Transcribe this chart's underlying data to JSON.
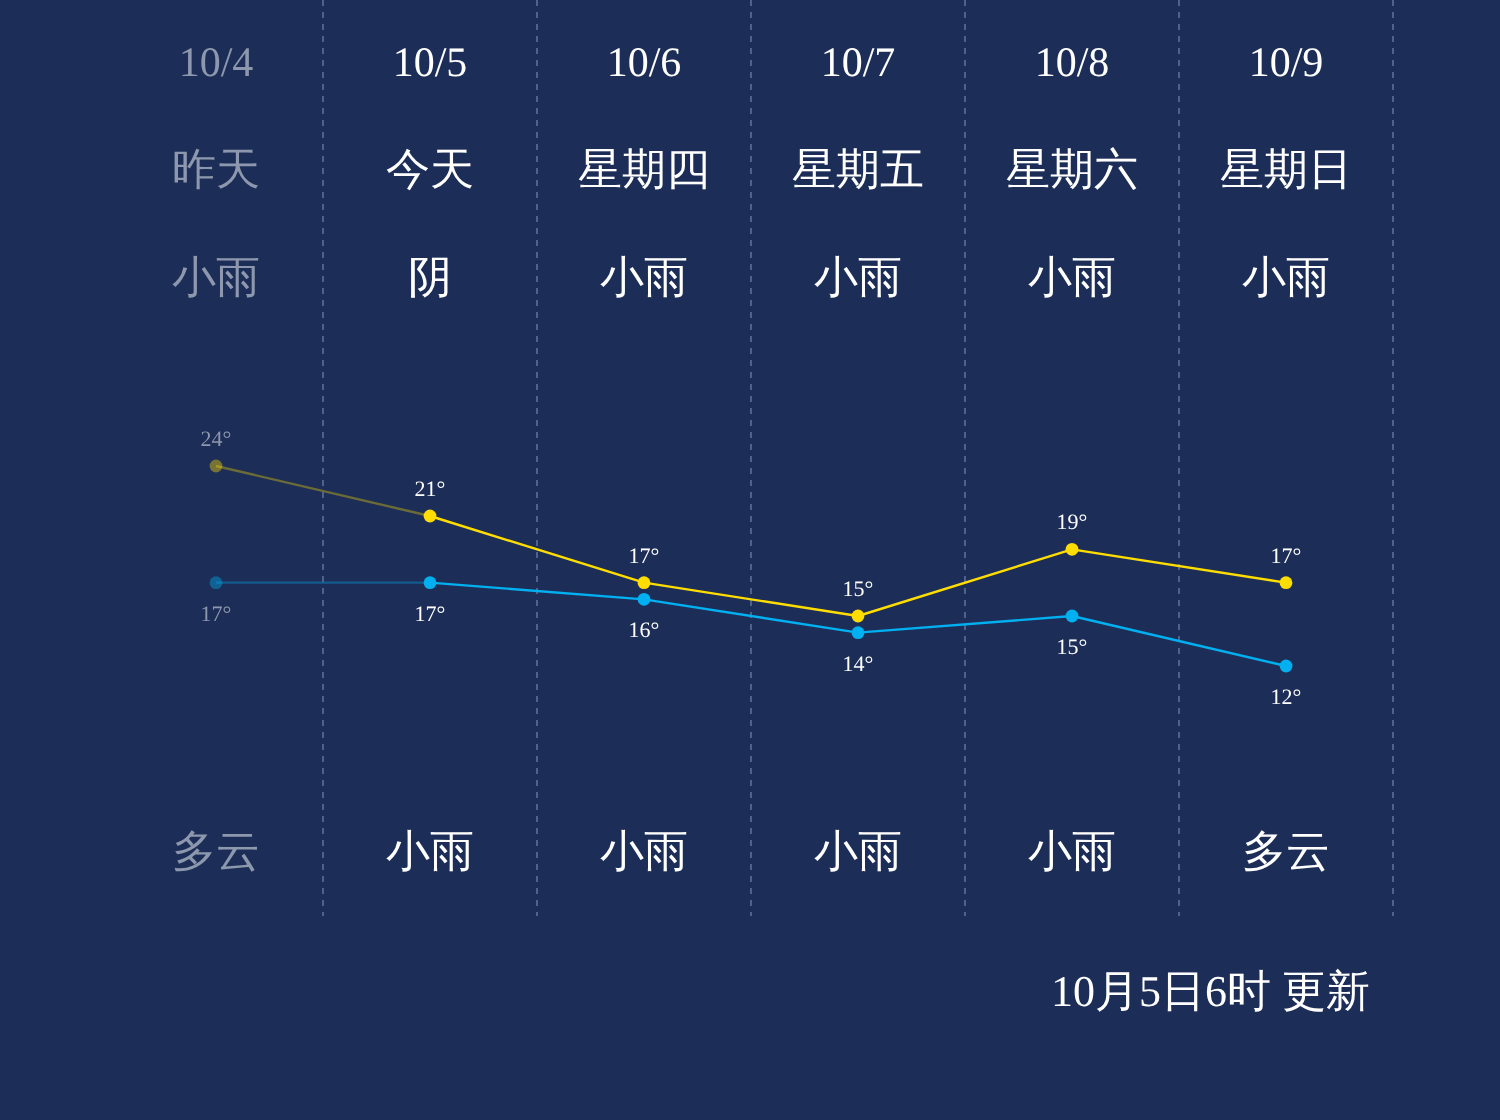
{
  "chart_data": {
    "type": "line",
    "categories": [
      "10/4",
      "10/5",
      "10/6",
      "10/7",
      "10/8",
      "10/9"
    ],
    "series": [
      {
        "color": "#ffdd00",
        "values": [
          24,
          21,
          17,
          15,
          19,
          17
        ],
        "value_labels": [
          "24°",
          "21°",
          "17°",
          "15°",
          "19°",
          "17°"
        ]
      },
      {
        "color": "#00b0f0",
        "values": [
          17,
          17,
          16,
          14,
          15,
          12
        ],
        "value_labels": [
          "17°",
          "17°",
          "16°",
          "14°",
          "15°",
          "12°"
        ]
      }
    ],
    "annotations": [
      "昨天",
      "今天",
      "星期四",
      "星期五",
      "星期六",
      "星期日",
      "小雨",
      "阴",
      "小雨",
      "小雨",
      "小雨",
      "小雨",
      "多云",
      "小雨",
      "小雨",
      "小雨",
      "小雨",
      "多云",
      "10月5日6时 更新"
    ],
    "grid": "x",
    "marker": "circle"
  }
}
